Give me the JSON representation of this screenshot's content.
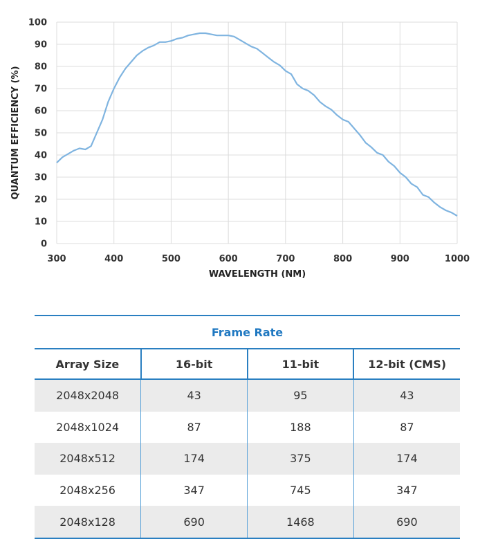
{
  "chart_data": {
    "type": "line",
    "title": "",
    "xlabel": "WAVELENGTH (NM)",
    "ylabel": "QUANTUM EFFICIENCY (%)",
    "xlim": [
      300,
      1000
    ],
    "ylim": [
      0,
      100
    ],
    "xticks": [
      300,
      400,
      500,
      600,
      700,
      800,
      900,
      1000
    ],
    "yticks": [
      0,
      10,
      20,
      30,
      40,
      50,
      60,
      70,
      80,
      90,
      100
    ],
    "grid": true,
    "line_color": "#7fb4e0",
    "series": [
      {
        "name": "Quantum Efficiency",
        "x": [
          300,
          310,
          320,
          330,
          340,
          350,
          360,
          370,
          380,
          390,
          400,
          410,
          420,
          430,
          440,
          450,
          460,
          470,
          480,
          490,
          500,
          510,
          520,
          530,
          540,
          550,
          560,
          570,
          580,
          590,
          600,
          610,
          620,
          630,
          640,
          650,
          660,
          670,
          680,
          690,
          700,
          710,
          720,
          730,
          740,
          750,
          760,
          770,
          780,
          790,
          800,
          810,
          820,
          830,
          840,
          850,
          860,
          870,
          880,
          890,
          900,
          910,
          920,
          930,
          940,
          950,
          960,
          970,
          980,
          990,
          1000
        ],
        "y": [
          36.5,
          39.0,
          40.5,
          42.0,
          43.0,
          42.5,
          44.0,
          50.0,
          56.0,
          64.0,
          70.0,
          75.0,
          79.0,
          82.0,
          85.0,
          87.0,
          88.5,
          89.5,
          91.0,
          91.0,
          91.5,
          92.5,
          93.0,
          94.0,
          94.5,
          95.0,
          95.0,
          94.5,
          94.0,
          94.0,
          94.0,
          93.5,
          92.0,
          90.5,
          89.0,
          88.0,
          86.0,
          84.0,
          82.0,
          80.5,
          78.0,
          76.5,
          72.0,
          70.0,
          69.0,
          67.0,
          64.0,
          62.0,
          60.5,
          58.0,
          56.0,
          55.0,
          52.0,
          49.0,
          45.5,
          43.5,
          41.0,
          40.0,
          37.0,
          35.0,
          32.0,
          30.0,
          27.0,
          25.5,
          22.0,
          21.0,
          18.5,
          16.5,
          15.0,
          14.0,
          12.5
        ]
      }
    ]
  },
  "table": {
    "title": "Frame Rate",
    "headers": [
      "Array Size",
      "16-bit",
      "11-bit",
      "12-bit (CMS)"
    ],
    "rows": [
      [
        "2048x2048",
        "43",
        "95",
        "43"
      ],
      [
        "2048x1024",
        "87",
        "188",
        "87"
      ],
      [
        "2048x512",
        "174",
        "375",
        "174"
      ],
      [
        "2048x256",
        "347",
        "745",
        "347"
      ],
      [
        "2048x128",
        "690",
        "1468",
        "690"
      ]
    ]
  }
}
